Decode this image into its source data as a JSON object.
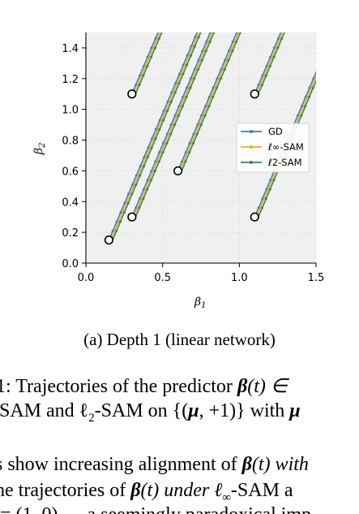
{
  "figure": {
    "caption": "(a) Depth 1 (linear network)"
  },
  "chart_data": {
    "type": "line",
    "xlabel": "β1",
    "ylabel": "β2",
    "xlim": [
      0.0,
      1.5
    ],
    "ylim": [
      0.0,
      1.5
    ],
    "xticks": [
      "0.0",
      "0.5",
      "1.0",
      "1.5"
    ],
    "yticks": [
      "0.0",
      "0.2",
      "0.4",
      "0.6",
      "0.8",
      "1.0",
      "1.2",
      "1.4"
    ],
    "grid": true,
    "legend_position": "right",
    "colors": {
      "GD": "#3a7ebf",
      "linf": "#f5a623",
      "l2": "#2e8b57"
    },
    "series": [
      {
        "name": "GD",
        "color": "#3a7ebf"
      },
      {
        "name": "ℓ∞-SAM",
        "color": "#f5a623"
      },
      {
        "name": "ℓ2-SAM",
        "color": "#2e8b57"
      }
    ],
    "initial_points": [
      {
        "x": 0.15,
        "y": 0.15
      },
      {
        "x": 0.3,
        "y": 0.3
      },
      {
        "x": 0.6,
        "y": 0.6
      },
      {
        "x": 1.1,
        "y": 0.3
      },
      {
        "x": 1.1,
        "y": 1.1
      },
      {
        "x": 0.3,
        "y": 1.1
      }
    ]
  },
  "text": {
    "l1_a": "1: Trajectories of the predictor ",
    "l1_b": "β",
    "l1_c": "(t) ∈",
    "l2_a": "-SAM and ℓ",
    "l2_b": "2",
    "l2_c": "-SAM on {(",
    "l2_d": "μ",
    "l2_e": ", +1)} with ",
    "l2_f": "μ",
    "l3_a": "s show increasing alignment of ",
    "l3_b": "β",
    "l3_c": "(t) with",
    "l4_a": "he trajectories of ",
    "l4_b": "β",
    "l4_c": "(t) under ℓ",
    "l4_d": "∞",
    "l4_e": "-SAM a",
    "l5_a": "= (1, 0) — a seemingly paradoxical imp"
  }
}
